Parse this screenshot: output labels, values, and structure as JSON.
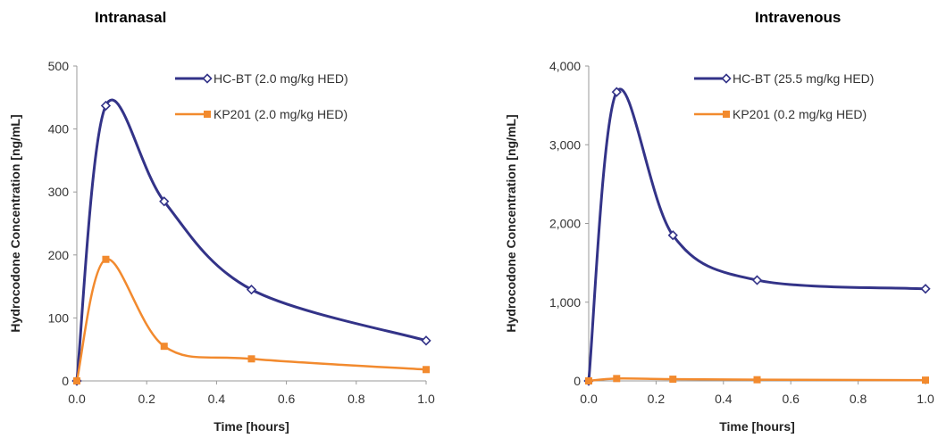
{
  "chart_data": [
    {
      "type": "line",
      "title": "Intranasal",
      "xlabel": "Time [hours]",
      "ylabel": "Hydrocodone Concentration [ng/mL]",
      "xlim": [
        0,
        1.0
      ],
      "ylim": [
        0,
        500
      ],
      "xticks": [
        "0.0",
        "0.2",
        "0.4",
        "0.6",
        "0.8",
        "1.0"
      ],
      "yticks": [
        "0",
        "100",
        "200",
        "300",
        "400",
        "500"
      ],
      "grid": false,
      "legend": "top-right",
      "series": [
        {
          "name": "HC-BT (2.0 mg/kg HED)",
          "color": "#333388",
          "marker": "open-diamond",
          "x": [
            0,
            0.083,
            0.25,
            0.5,
            1.0
          ],
          "y": [
            0,
            437,
            285,
            145,
            64
          ]
        },
        {
          "name": "KP201 (2.0 mg/kg HED)",
          "color": "#f28a2e",
          "marker": "square",
          "x": [
            0,
            0.083,
            0.25,
            0.5,
            1.0
          ],
          "y": [
            0,
            193,
            55,
            35,
            18
          ]
        }
      ]
    },
    {
      "type": "line",
      "title": "Intravenous",
      "xlabel": "Time [hours]",
      "ylabel": "Hydrocodone Concentration [ng/mL]",
      "xlim": [
        0,
        1.0
      ],
      "ylim": [
        0,
        4000
      ],
      "xticks": [
        "0.0",
        "0.2",
        "0.4",
        "0.6",
        "0.8",
        "1.0"
      ],
      "yticks": [
        "0",
        "1,000",
        "2,000",
        "3,000",
        "4,000"
      ],
      "grid": false,
      "legend": "top-right",
      "series": [
        {
          "name": "HC-BT (25.5 mg/kg HED)",
          "color": "#333388",
          "marker": "open-diamond",
          "x": [
            0,
            0.083,
            0.25,
            0.5,
            1.0
          ],
          "y": [
            0,
            3670,
            1850,
            1280,
            1170
          ]
        },
        {
          "name": "KP201 (0.2 mg/kg HED)",
          "color": "#f28a2e",
          "marker": "square",
          "x": [
            0,
            0.083,
            0.25,
            0.5,
            1.0
          ],
          "y": [
            0,
            30,
            22,
            15,
            10
          ]
        }
      ]
    }
  ]
}
